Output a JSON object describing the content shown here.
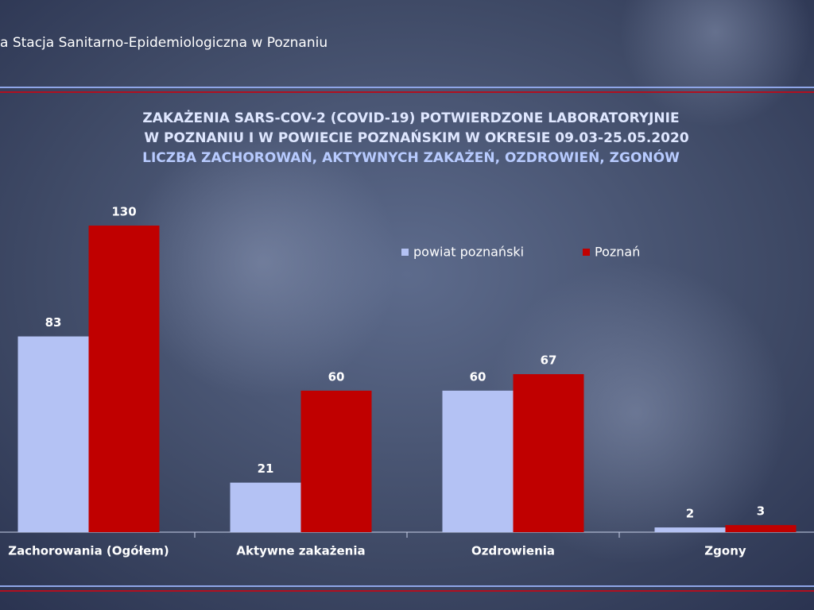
{
  "chart_data": {
    "type": "bar",
    "header": "a Stacja Sanitarno-Epidemiologiczna w Poznaniu",
    "title": [
      "ZAKAŻENIA SARS-COV-2 (COVID-19) POTWIERDZONE LABORATORYJNIE",
      "W POZNANIU I W POWIECIE POZNAŃSKIM W OKRESIE 09.03-25.05.2020",
      "LICZBA ZACHOROWAŃ, AKTYWNYCH ZAKAŻEŃ, OZDROWIEŃ, ZGONÓW"
    ],
    "categories": [
      "Zachorowania (Ogółem)",
      "Aktywne zakażenia",
      "Ozdrowienia",
      "Zgony"
    ],
    "series": [
      {
        "name": "powiat poznański",
        "color": "#b4c2f4",
        "values": [
          83,
          21,
          60,
          2
        ]
      },
      {
        "name": "Poznań",
        "color": "#c00000",
        "values": [
          130,
          60,
          67,
          3
        ]
      }
    ]
  }
}
